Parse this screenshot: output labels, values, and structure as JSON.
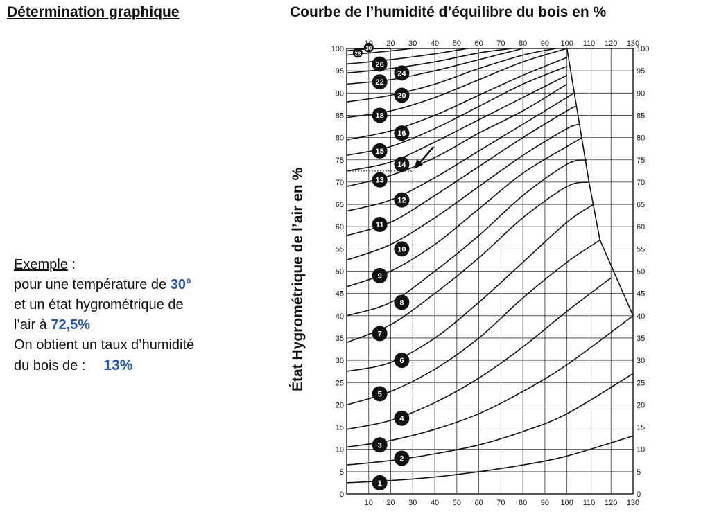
{
  "left_title": "Détermination graphique",
  "chart_title": "Courbe de l’humidité d’équilibre du bois en %",
  "example": {
    "label": "Exemple",
    "colon": " :",
    "line1": "pour une température de ",
    "temperature": "30°",
    "line2": "et un état hygrométrique de",
    "line3": "l’air à ",
    "humidity": "72,5%",
    "line4": "On obtient un taux d’humidité",
    "line5": "du bois de :",
    "result": "13%"
  },
  "chart_data": {
    "type": "line",
    "title": "Courbe de l’humidité d’équilibre du bois en %",
    "xlabel": "",
    "ylabel": "État Hygrométrique de l’air en %",
    "xlim": [
      0,
      130
    ],
    "ylim": [
      0,
      100
    ],
    "x_ticks": [
      10,
      20,
      30,
      40,
      50,
      60,
      70,
      80,
      90,
      100,
      110,
      120,
      130
    ],
    "y_ticks": [
      0,
      5,
      10,
      15,
      20,
      25,
      30,
      35,
      40,
      45,
      50,
      55,
      60,
      65,
      70,
      75,
      80,
      85,
      90,
      95,
      100
    ],
    "grid": true,
    "boundary": [
      [
        100,
        100
      ],
      [
        110,
        70
      ],
      [
        115,
        57
      ],
      [
        130,
        40
      ]
    ],
    "example_point": {
      "x": 30,
      "y": 72.5
    },
    "series": [
      {
        "name": "1",
        "label_at": [
          15,
          2.5
        ],
        "points": [
          [
            0,
            2.5
          ],
          [
            20,
            3
          ],
          [
            40,
            3.8
          ],
          [
            60,
            5
          ],
          [
            80,
            6.5
          ],
          [
            100,
            8.5
          ],
          [
            130,
            13
          ]
        ]
      },
      {
        "name": "2",
        "label_at": [
          25,
          8
        ],
        "points": [
          [
            0,
            6.5
          ],
          [
            20,
            7.5
          ],
          [
            40,
            9
          ],
          [
            60,
            11
          ],
          [
            80,
            14
          ],
          [
            100,
            18
          ],
          [
            130,
            27
          ]
        ]
      },
      {
        "name": "3",
        "label_at": [
          15,
          11
        ],
        "points": [
          [
            0,
            10.5
          ],
          [
            20,
            12
          ],
          [
            40,
            14.5
          ],
          [
            60,
            18
          ],
          [
            80,
            23
          ],
          [
            100,
            29
          ],
          [
            130,
            40
          ]
        ]
      },
      {
        "name": "4",
        "label_at": [
          25,
          17
        ],
        "points": [
          [
            0,
            14.5
          ],
          [
            20,
            16.5
          ],
          [
            40,
            20.5
          ],
          [
            60,
            26
          ],
          [
            80,
            33
          ],
          [
            100,
            41
          ],
          [
            120,
            48.5
          ]
        ]
      },
      {
        "name": "5",
        "label_at": [
          15,
          22.5
        ],
        "points": [
          [
            0,
            20
          ],
          [
            20,
            23
          ],
          [
            40,
            28
          ],
          [
            60,
            35
          ],
          [
            80,
            44
          ],
          [
            100,
            52
          ],
          [
            115,
            57
          ]
        ]
      },
      {
        "name": "6",
        "label_at": [
          25,
          30
        ],
        "points": [
          [
            0,
            27.5
          ],
          [
            20,
            29.5
          ],
          [
            40,
            35
          ],
          [
            60,
            43
          ],
          [
            80,
            52
          ],
          [
            100,
            61
          ],
          [
            112,
            65
          ]
        ]
      },
      {
        "name": "7",
        "label_at": [
          15,
          36
        ],
        "points": [
          [
            0,
            34
          ],
          [
            20,
            38
          ],
          [
            40,
            45
          ],
          [
            60,
            53
          ],
          [
            80,
            62
          ],
          [
            100,
            69
          ],
          [
            110,
            70
          ]
        ]
      },
      {
        "name": "8",
        "label_at": [
          25,
          43
        ],
        "points": [
          [
            0,
            40
          ],
          [
            20,
            43
          ],
          [
            40,
            50
          ],
          [
            60,
            58
          ],
          [
            80,
            67
          ],
          [
            100,
            74
          ],
          [
            109,
            75
          ]
        ]
      },
      {
        "name": "9",
        "label_at": [
          15,
          49
        ],
        "points": [
          [
            0,
            46.5
          ],
          [
            20,
            50
          ],
          [
            40,
            56
          ],
          [
            60,
            64
          ],
          [
            80,
            72
          ],
          [
            100,
            78
          ],
          [
            107,
            80
          ]
        ]
      },
      {
        "name": "10",
        "label_at": [
          25,
          55
        ],
        "points": [
          [
            0,
            52.5
          ],
          [
            20,
            56
          ],
          [
            40,
            62
          ],
          [
            60,
            69
          ],
          [
            80,
            76
          ],
          [
            100,
            82
          ],
          [
            106,
            83
          ]
        ]
      },
      {
        "name": "11",
        "label_at": [
          15,
          60.5
        ],
        "points": [
          [
            0,
            58
          ],
          [
            20,
            61
          ],
          [
            40,
            67
          ],
          [
            60,
            73.5
          ],
          [
            80,
            80
          ],
          [
            100,
            86
          ],
          [
            104,
            87
          ]
        ]
      },
      {
        "name": "12",
        "label_at": [
          25,
          66
        ],
        "points": [
          [
            0,
            63.5
          ],
          [
            20,
            66
          ],
          [
            40,
            71
          ],
          [
            60,
            77
          ],
          [
            80,
            83
          ],
          [
            100,
            89
          ],
          [
            103,
            90
          ]
        ]
      },
      {
        "name": "13",
        "label_at": [
          15,
          70.5
        ],
        "points": [
          [
            0,
            69
          ],
          [
            20,
            71.5
          ],
          [
            40,
            75.5
          ],
          [
            60,
            81
          ],
          [
            80,
            86
          ],
          [
            100,
            92
          ]
        ]
      },
      {
        "name": "14",
        "label_at": [
          25,
          74
        ],
        "points": [
          [
            0,
            72.5
          ],
          [
            20,
            74.5
          ],
          [
            40,
            79
          ],
          [
            60,
            84
          ],
          [
            80,
            89
          ],
          [
            100,
            94
          ]
        ]
      },
      {
        "name": "15",
        "label_at": [
          15,
          77
        ],
        "points": [
          [
            0,
            76
          ],
          [
            20,
            78
          ],
          [
            40,
            82
          ],
          [
            60,
            87
          ],
          [
            80,
            92
          ],
          [
            100,
            96
          ]
        ]
      },
      {
        "name": "16",
        "label_at": [
          25,
          81
        ],
        "points": [
          [
            0,
            79.5
          ],
          [
            20,
            81.5
          ],
          [
            40,
            85
          ],
          [
            60,
            89.5
          ],
          [
            80,
            94
          ],
          [
            100,
            98
          ]
        ]
      },
      {
        "name": "18",
        "label_at": [
          15,
          85
        ],
        "points": [
          [
            0,
            84.5
          ],
          [
            20,
            86
          ],
          [
            40,
            89
          ],
          [
            60,
            93
          ],
          [
            80,
            97
          ],
          [
            100,
            100
          ]
        ]
      },
      {
        "name": "20",
        "label_at": [
          25,
          89.5
        ],
        "points": [
          [
            0,
            88
          ],
          [
            20,
            89.5
          ],
          [
            40,
            92
          ],
          [
            60,
            95.5
          ],
          [
            80,
            98.5
          ],
          [
            95,
            100
          ]
        ]
      },
      {
        "name": "22",
        "label_at": [
          15,
          92.5
        ],
        "points": [
          [
            0,
            92
          ],
          [
            20,
            93
          ],
          [
            40,
            95
          ],
          [
            60,
            97.5
          ],
          [
            80,
            100
          ]
        ]
      },
      {
        "name": "24",
        "label_at": [
          25,
          94.5
        ],
        "points": [
          [
            0,
            94.5
          ],
          [
            20,
            95.5
          ],
          [
            40,
            97
          ],
          [
            60,
            99
          ],
          [
            75,
            100
          ]
        ]
      },
      {
        "name": "26",
        "label_at": [
          15,
          96.5
        ],
        "points": [
          [
            0,
            96.5
          ],
          [
            20,
            97.5
          ],
          [
            40,
            98.8
          ],
          [
            55,
            100
          ]
        ]
      },
      {
        "name": "28",
        "label_at": [
          5,
          99
        ],
        "points": [
          [
            0,
            98.5
          ],
          [
            15,
            99.2
          ],
          [
            30,
            100
          ]
        ]
      },
      {
        "name": "30",
        "label_at": [
          10,
          100.2
        ],
        "points": [
          [
            0,
            99.5
          ],
          [
            10,
            99.9
          ],
          [
            20,
            100
          ]
        ]
      }
    ]
  }
}
